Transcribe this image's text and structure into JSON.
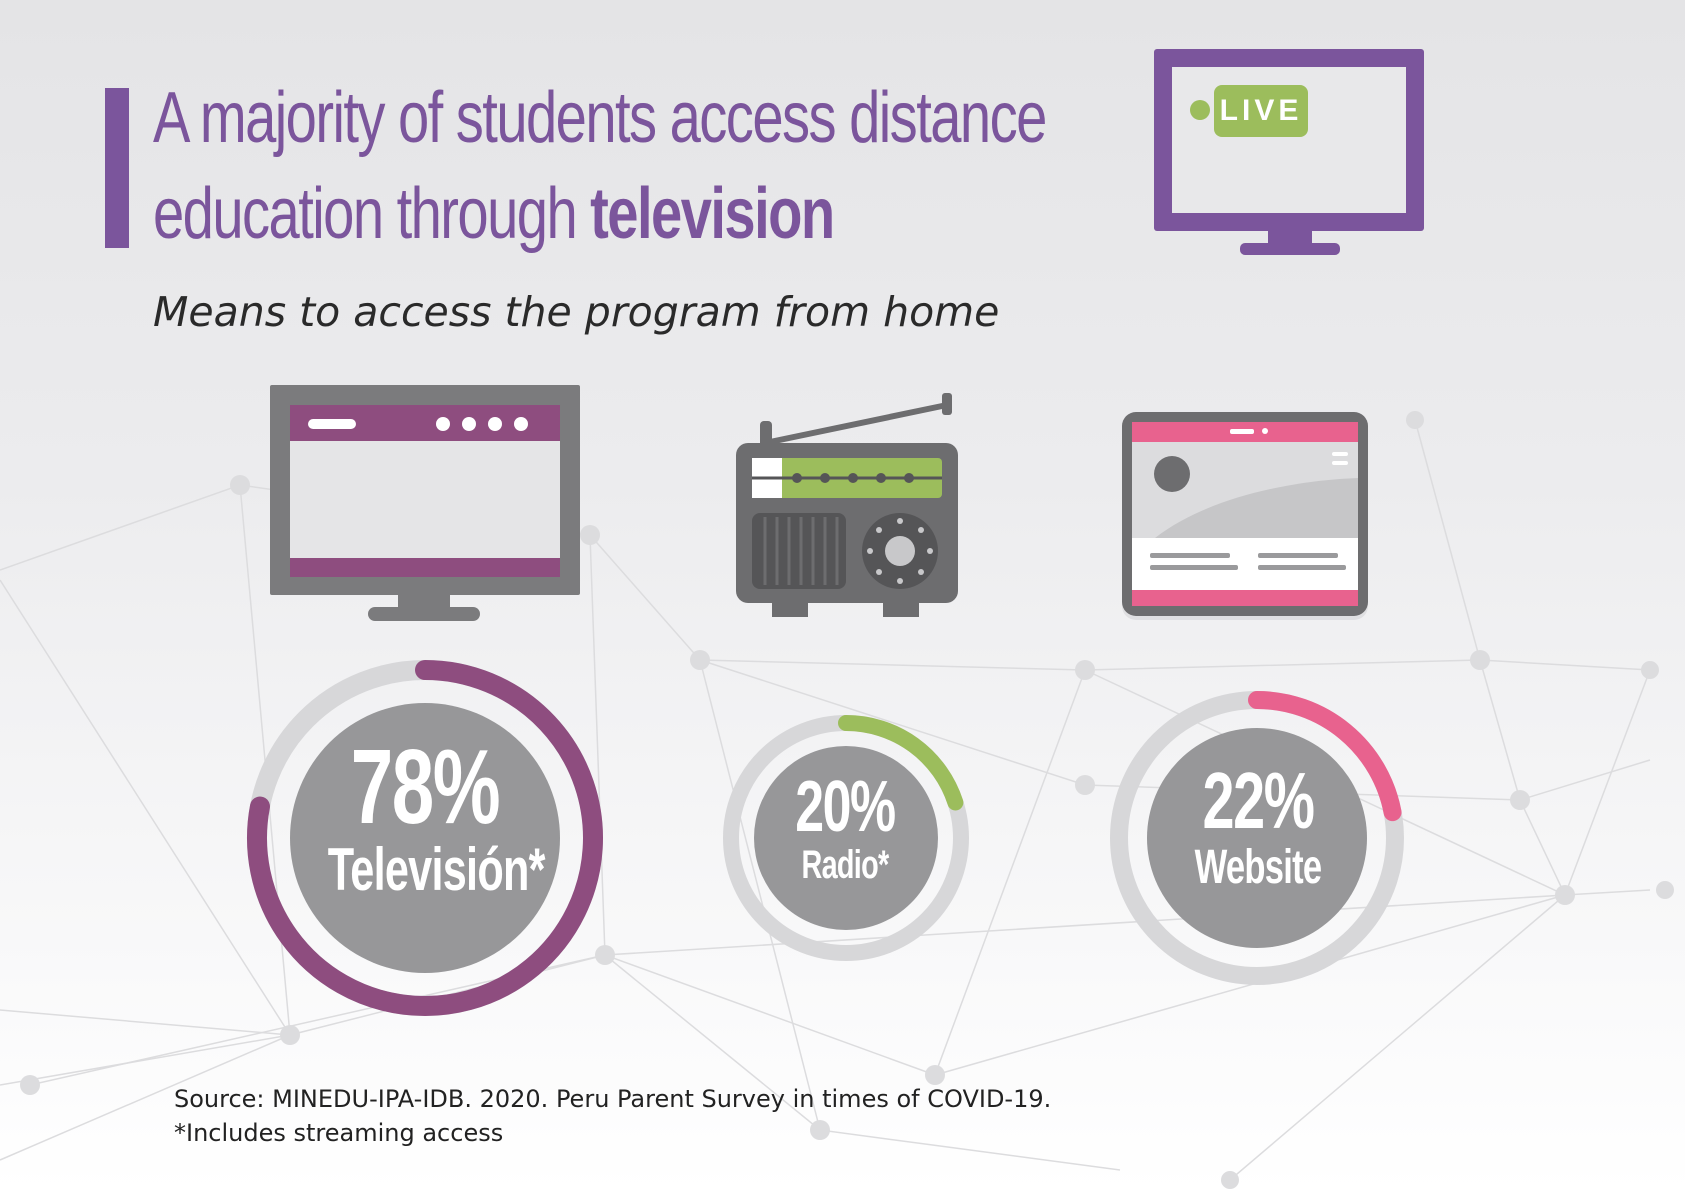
{
  "header": {
    "title_line1": "A majority of students access distance",
    "title_line2_plain": "education through ",
    "title_line2_bold": "television",
    "subtitle": "Means to access the program from home",
    "live_badge": "LIVE"
  },
  "colors": {
    "accent": "#7b559c",
    "television": "#8e4d7f",
    "radio": "#9cbd5c",
    "website": "#e8628e",
    "ring_track": "#d7d7d9",
    "disc": "#979799"
  },
  "icons": [
    "tv-icon",
    "television-icon",
    "radio-icon",
    "tablet-icon"
  ],
  "chart_data": {
    "type": "pie",
    "categories": [
      "Televisión*",
      "Radio*",
      "Website"
    ],
    "values": [
      78,
      20,
      22
    ],
    "value_labels": [
      "78%",
      "20%",
      "22%"
    ],
    "colors": [
      "#8e4d7f",
      "#9cbd5c",
      "#e8628e"
    ]
  },
  "footer": {
    "source": "Source: MINEDU-IPA-IDB. 2020. Peru Parent Survey in times of COVID-19.",
    "note": "*Includes streaming access"
  }
}
